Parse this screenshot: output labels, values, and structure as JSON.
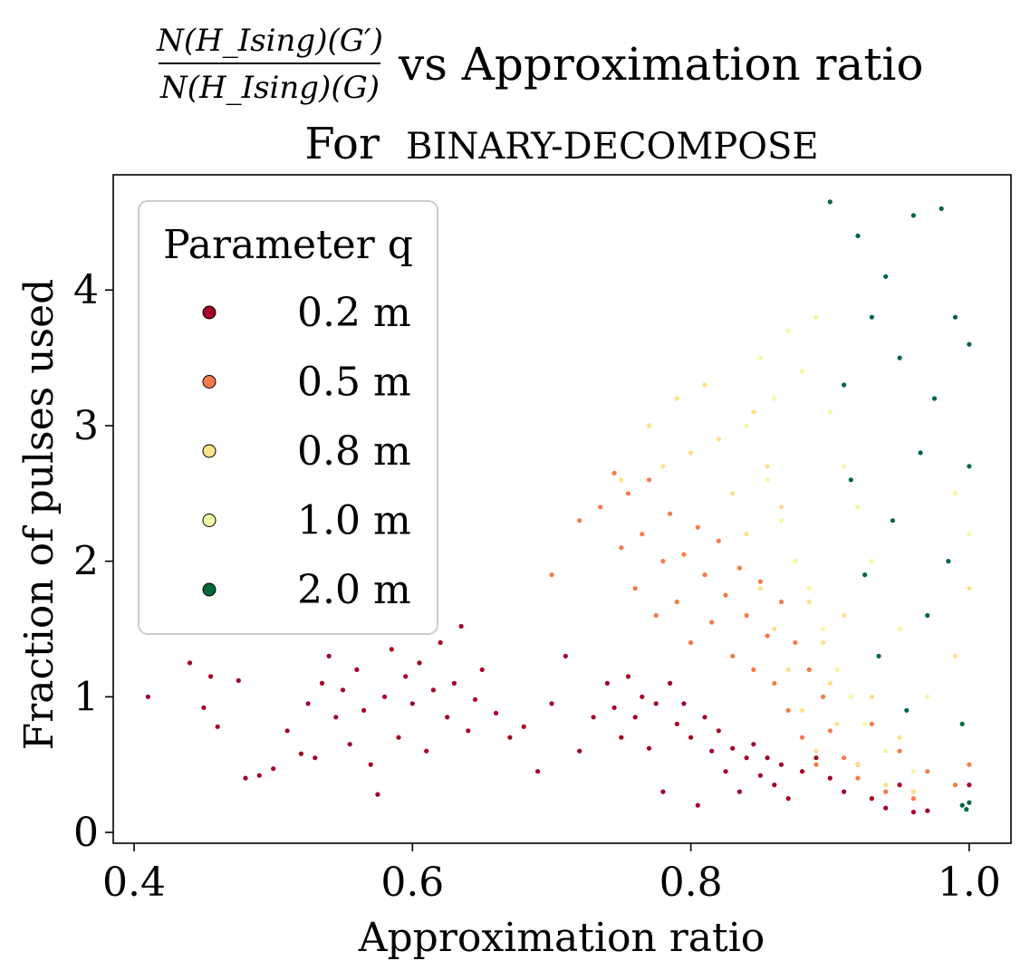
{
  "chart_data": {
    "type": "scatter",
    "title": {
      "fraction_numerator": "N(H_Ising)(G′)",
      "fraction_denominator": "N(H_Ising)(G)",
      "suffix": "vs Approximation ratio",
      "line2_prefix": "For",
      "line2_method": "BINARY-DECOMPOSE"
    },
    "xlabel": "Approximation ratio",
    "ylabel": "Fraction of pulses used",
    "xlim": [
      0.385,
      1.03
    ],
    "ylim": [
      -0.08,
      4.85
    ],
    "xticks": [
      0.4,
      0.6,
      0.8,
      1.0
    ],
    "xtick_labels": [
      "0.4",
      "0.6",
      "0.8",
      "1.0"
    ],
    "yticks": [
      0,
      1,
      2,
      3,
      4
    ],
    "ytick_labels": [
      "0",
      "1",
      "2",
      "3",
      "4"
    ],
    "grid": false,
    "legend": {
      "title": "Parameter q",
      "position": "upper-left",
      "entries": [
        "0.2 m",
        "0.5 m",
        "0.8 m",
        "1.0 m",
        "2.0 m"
      ]
    },
    "series": [
      {
        "name": "0.2 m",
        "color": "#a50026",
        "points": [
          [
            0.41,
            1.0
          ],
          [
            0.44,
            1.25
          ],
          [
            0.45,
            0.92
          ],
          [
            0.455,
            1.15
          ],
          [
            0.46,
            0.78
          ],
          [
            0.475,
            1.12
          ],
          [
            0.48,
            0.4
          ],
          [
            0.49,
            0.42
          ],
          [
            0.5,
            0.47
          ],
          [
            0.51,
            0.75
          ],
          [
            0.52,
            0.58
          ],
          [
            0.525,
            0.95
          ],
          [
            0.53,
            0.55
          ],
          [
            0.535,
            1.1
          ],
          [
            0.54,
            1.3
          ],
          [
            0.545,
            0.85
          ],
          [
            0.55,
            1.05
          ],
          [
            0.555,
            0.65
          ],
          [
            0.56,
            1.2
          ],
          [
            0.565,
            0.9
          ],
          [
            0.57,
            0.5
          ],
          [
            0.575,
            0.28
          ],
          [
            0.58,
            1.0
          ],
          [
            0.585,
            1.35
          ],
          [
            0.59,
            0.7
          ],
          [
            0.595,
            1.15
          ],
          [
            0.6,
            0.95
          ],
          [
            0.605,
            1.25
          ],
          [
            0.61,
            0.6
          ],
          [
            0.615,
            1.05
          ],
          [
            0.62,
            1.4
          ],
          [
            0.625,
            0.85
          ],
          [
            0.63,
            1.1
          ],
          [
            0.635,
            1.52
          ],
          [
            0.64,
            0.75
          ],
          [
            0.645,
            0.98
          ],
          [
            0.65,
            1.2
          ],
          [
            0.66,
            0.88
          ],
          [
            0.67,
            0.7
          ],
          [
            0.68,
            0.78
          ],
          [
            0.69,
            0.45
          ],
          [
            0.7,
            0.95
          ],
          [
            0.71,
            1.3
          ],
          [
            0.72,
            0.6
          ],
          [
            0.73,
            0.85
          ],
          [
            0.74,
            1.1
          ],
          [
            0.745,
            0.92
          ],
          [
            0.75,
            0.7
          ],
          [
            0.755,
            1.15
          ],
          [
            0.76,
            0.85
          ],
          [
            0.765,
            1.0
          ],
          [
            0.77,
            0.62
          ],
          [
            0.775,
            0.95
          ],
          [
            0.78,
            0.3
          ],
          [
            0.785,
            1.1
          ],
          [
            0.79,
            0.8
          ],
          [
            0.795,
            0.95
          ],
          [
            0.8,
            0.7
          ],
          [
            0.805,
            0.2
          ],
          [
            0.81,
            0.85
          ],
          [
            0.815,
            0.6
          ],
          [
            0.82,
            0.75
          ],
          [
            0.825,
            0.45
          ],
          [
            0.83,
            0.62
          ],
          [
            0.835,
            0.3
          ],
          [
            0.84,
            0.55
          ],
          [
            0.845,
            0.65
          ],
          [
            0.85,
            0.42
          ],
          [
            0.855,
            0.55
          ],
          [
            0.86,
            0.35
          ],
          [
            0.865,
            0.5
          ],
          [
            0.87,
            0.25
          ],
          [
            0.88,
            0.45
          ],
          [
            0.89,
            0.55
          ],
          [
            0.9,
            0.4
          ],
          [
            0.91,
            0.3
          ],
          [
            0.92,
            0.5
          ],
          [
            0.93,
            0.25
          ],
          [
            0.94,
            0.18
          ],
          [
            0.95,
            0.35
          ],
          [
            0.96,
            0.15
          ],
          [
            0.97,
            0.16
          ],
          [
            1.0,
            0.35
          ]
        ]
      },
      {
        "name": "0.5 m",
        "color": "#f67a49",
        "points": [
          [
            0.7,
            1.9
          ],
          [
            0.72,
            2.3
          ],
          [
            0.735,
            2.4
          ],
          [
            0.745,
            2.65
          ],
          [
            0.75,
            2.1
          ],
          [
            0.755,
            2.5
          ],
          [
            0.76,
            1.8
          ],
          [
            0.765,
            2.2
          ],
          [
            0.77,
            2.6
          ],
          [
            0.775,
            1.6
          ],
          [
            0.78,
            2.0
          ],
          [
            0.785,
            2.35
          ],
          [
            0.79,
            1.7
          ],
          [
            0.795,
            2.05
          ],
          [
            0.8,
            1.4
          ],
          [
            0.805,
            2.25
          ],
          [
            0.81,
            1.9
          ],
          [
            0.815,
            1.55
          ],
          [
            0.82,
            2.15
          ],
          [
            0.825,
            1.75
          ],
          [
            0.83,
            1.3
          ],
          [
            0.835,
            1.95
          ],
          [
            0.84,
            1.6
          ],
          [
            0.845,
            1.2
          ],
          [
            0.85,
            1.85
          ],
          [
            0.855,
            1.45
          ],
          [
            0.86,
            1.1
          ],
          [
            0.865,
            1.7
          ],
          [
            0.87,
            0.9
          ],
          [
            0.875,
            1.4
          ],
          [
            0.88,
            0.7
          ],
          [
            0.885,
            1.2
          ],
          [
            0.89,
            0.5
          ],
          [
            0.895,
            1.0
          ],
          [
            0.9,
            0.75
          ],
          [
            0.91,
            0.55
          ],
          [
            0.92,
            0.4
          ],
          [
            0.93,
            0.8
          ],
          [
            0.94,
            0.3
          ],
          [
            0.95,
            0.6
          ],
          [
            0.96,
            0.25
          ],
          [
            0.97,
            0.45
          ],
          [
            0.99,
            0.35
          ],
          [
            1.0,
            0.5
          ]
        ]
      },
      {
        "name": "0.8 m",
        "color": "#fee08b",
        "points": [
          [
            0.75,
            2.6
          ],
          [
            0.77,
            3.0
          ],
          [
            0.78,
            2.7
          ],
          [
            0.79,
            3.2
          ],
          [
            0.8,
            2.8
          ],
          [
            0.81,
            3.3
          ],
          [
            0.82,
            2.9
          ],
          [
            0.83,
            2.5
          ],
          [
            0.84,
            2.2
          ],
          [
            0.845,
            3.1
          ],
          [
            0.85,
            1.8
          ],
          [
            0.855,
            2.7
          ],
          [
            0.86,
            1.5
          ],
          [
            0.865,
            2.4
          ],
          [
            0.87,
            1.2
          ],
          [
            0.875,
            2.0
          ],
          [
            0.88,
            0.9
          ],
          [
            0.885,
            1.7
          ],
          [
            0.89,
            0.6
          ],
          [
            0.895,
            1.4
          ],
          [
            0.9,
            1.1
          ],
          [
            0.905,
            0.8
          ],
          [
            0.91,
            1.6
          ],
          [
            0.92,
            0.5
          ],
          [
            0.93,
            1.0
          ],
          [
            0.94,
            0.35
          ],
          [
            0.95,
            0.7
          ],
          [
            0.96,
            0.3
          ],
          [
            0.99,
            1.3
          ],
          [
            1.0,
            1.8
          ]
        ]
      },
      {
        "name": "1.0 m",
        "color": "#f3f8a6",
        "points": [
          [
            0.84,
            3.0
          ],
          [
            0.85,
            3.5
          ],
          [
            0.855,
            2.6
          ],
          [
            0.86,
            3.2
          ],
          [
            0.865,
            2.3
          ],
          [
            0.87,
            3.7
          ],
          [
            0.875,
            2.0
          ],
          [
            0.88,
            3.4
          ],
          [
            0.885,
            1.8
          ],
          [
            0.89,
            3.8
          ],
          [
            0.895,
            1.5
          ],
          [
            0.9,
            3.1
          ],
          [
            0.905,
            1.2
          ],
          [
            0.91,
            2.7
          ],
          [
            0.915,
            1.0
          ],
          [
            0.92,
            2.4
          ],
          [
            0.925,
            0.8
          ],
          [
            0.93,
            2.0
          ],
          [
            0.94,
            0.6
          ],
          [
            0.95,
            1.5
          ],
          [
            0.96,
            0.45
          ],
          [
            0.97,
            1.0
          ],
          [
            0.99,
            2.5
          ],
          [
            1.0,
            2.2
          ]
        ]
      },
      {
        "name": "2.0 m",
        "color": "#006837",
        "points": [
          [
            0.9,
            4.65
          ],
          [
            0.91,
            3.3
          ],
          [
            0.915,
            2.6
          ],
          [
            0.92,
            4.4
          ],
          [
            0.925,
            1.9
          ],
          [
            0.93,
            3.8
          ],
          [
            0.935,
            1.3
          ],
          [
            0.94,
            4.1
          ],
          [
            0.945,
            2.3
          ],
          [
            0.95,
            3.5
          ],
          [
            0.955,
            0.9
          ],
          [
            0.96,
            4.55
          ],
          [
            0.965,
            2.8
          ],
          [
            0.97,
            1.6
          ],
          [
            0.975,
            3.2
          ],
          [
            0.98,
            4.6
          ],
          [
            0.985,
            2.0
          ],
          [
            0.99,
            3.8
          ],
          [
            0.995,
            0.8
          ],
          [
            0.995,
            0.2
          ],
          [
            0.998,
            0.17
          ],
          [
            1.0,
            2.7
          ],
          [
            1.0,
            3.6
          ],
          [
            1.0,
            0.22
          ]
        ]
      }
    ]
  }
}
